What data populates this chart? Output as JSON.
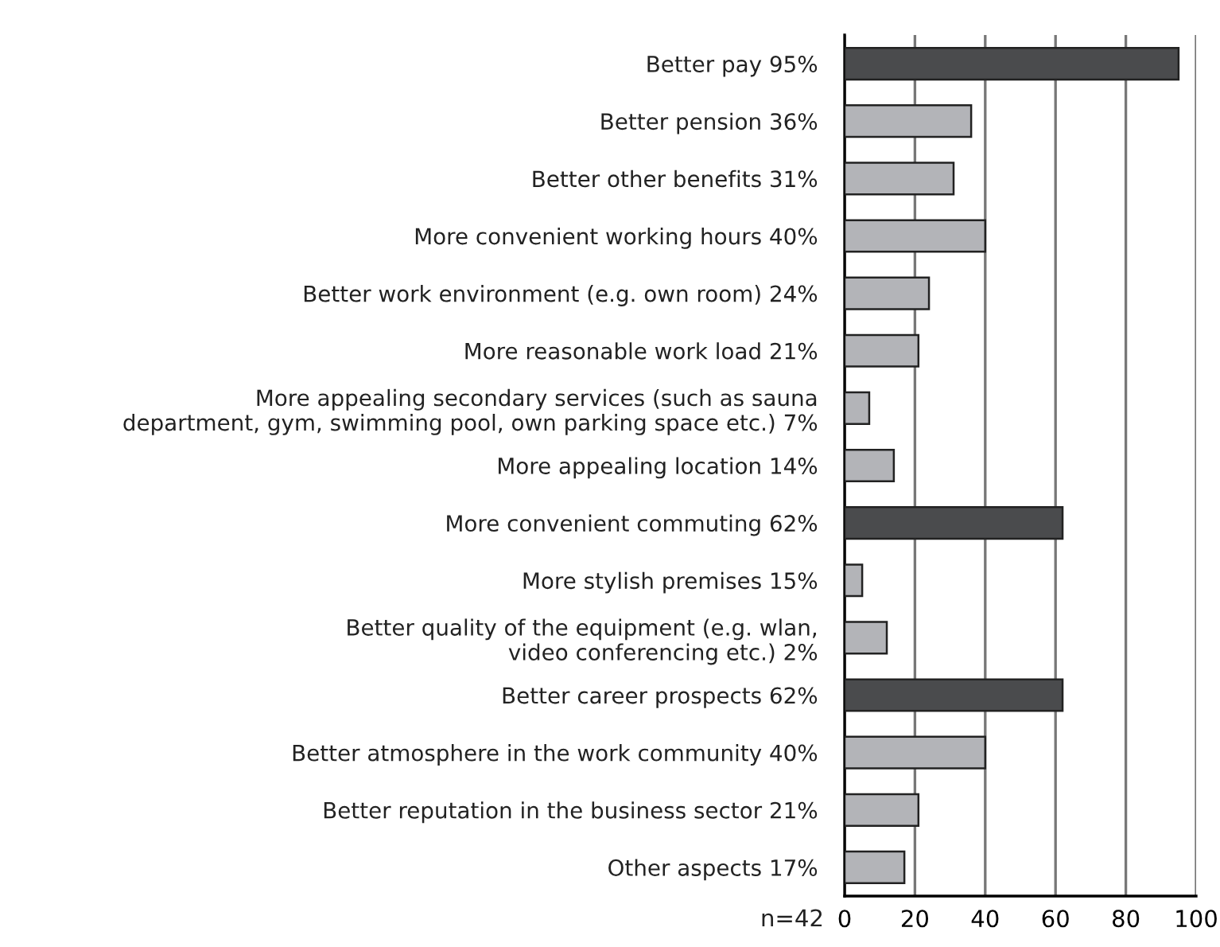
{
  "chart_data": {
    "type": "bar",
    "orientation": "horizontal",
    "categories": [
      "Better pay 95%",
      "Better pension 36%",
      "Better other benefits 31%",
      "More convenient working hours 40%",
      "Better work environment (e.g. own room) 24%",
      "More reasonable work load 21%",
      "More appealing secondary services (such as sauna\ndepartment, gym, swimming pool, own parking space etc.) 7%",
      "More appealing location 14%",
      "More convenient commuting 62%",
      "More stylish premises 15%",
      "Better quality of the equipment (e.g. wlan,\nvideo conferencing etc.) 2%",
      "Better career prospects 62%",
      "Better atmosphere in the work community 40%",
      "Better reputation in the business sector 21%",
      "Other aspects 17%"
    ],
    "values": [
      95,
      36,
      31,
      40,
      24,
      21,
      7,
      14,
      62,
      5,
      12,
      62,
      40,
      21,
      17
    ],
    "colors": [
      "#4a4b4d",
      "#b3b4b8",
      "#b3b4b8",
      "#b3b4b8",
      "#b3b4b8",
      "#b3b4b8",
      "#b3b4b8",
      "#b3b4b8",
      "#4a4b4d",
      "#b3b4b8",
      "#b3b4b8",
      "#4a4b4d",
      "#b3b4b8",
      "#b3b4b8",
      "#b3b4b8"
    ],
    "xlim": [
      0,
      100
    ],
    "xticks": [
      0,
      20,
      40,
      60,
      80,
      100
    ],
    "grid": "x",
    "annotations": [
      "n=42"
    ]
  }
}
